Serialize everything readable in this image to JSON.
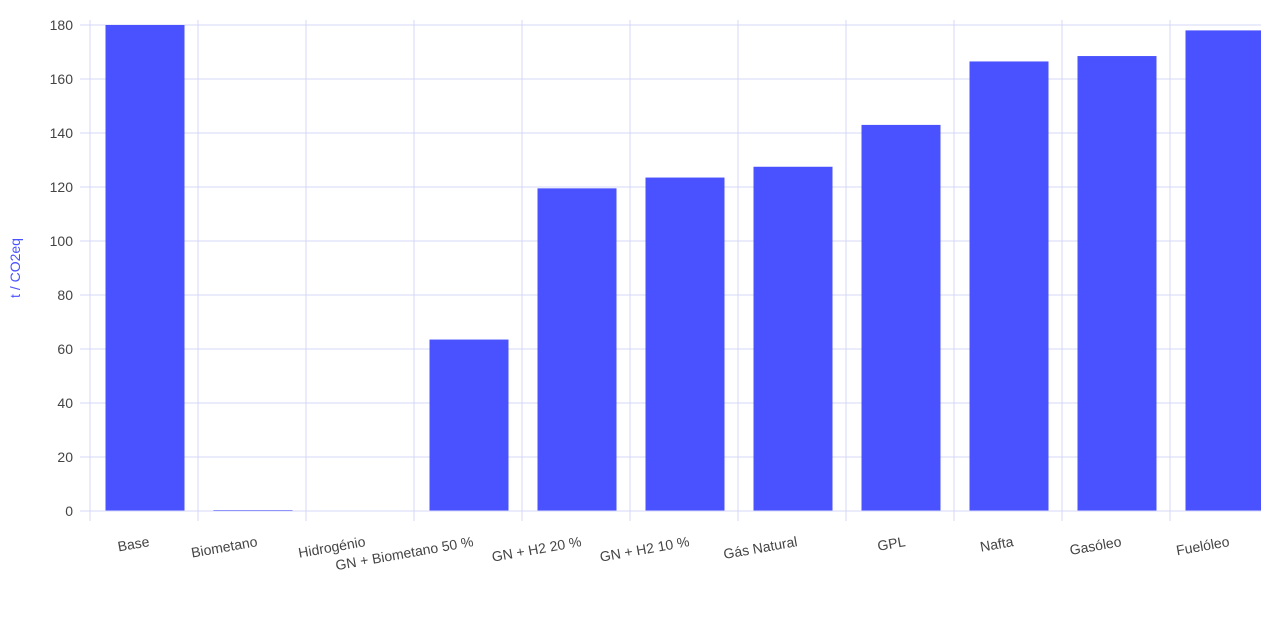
{
  "chart_data": {
    "type": "bar",
    "ylabel": "t / CO2eq",
    "xlabel": "",
    "categories": [
      "Base",
      "Biometano",
      "Hidrogénio",
      "GN + Biometano 50 %",
      "GN + H2  20 %",
      "GN + H2  10 %",
      "Gás Natural",
      "GPL",
      "Nafta",
      "Gasóleo",
      "Fuelóleo"
    ],
    "values": [
      180,
      0.3,
      0,
      63.5,
      119.5,
      123.5,
      127.5,
      143,
      166.5,
      168.5,
      178
    ],
    "ylim": [
      0,
      180
    ],
    "yticks": [
      0,
      20,
      40,
      60,
      80,
      100,
      120,
      140,
      160,
      180
    ],
    "grid": true,
    "colors": {
      "bar": "#4a52ff",
      "grid": "#d6d8f7",
      "axis_title": "#4a52ff",
      "tick_text": "#444444"
    }
  }
}
